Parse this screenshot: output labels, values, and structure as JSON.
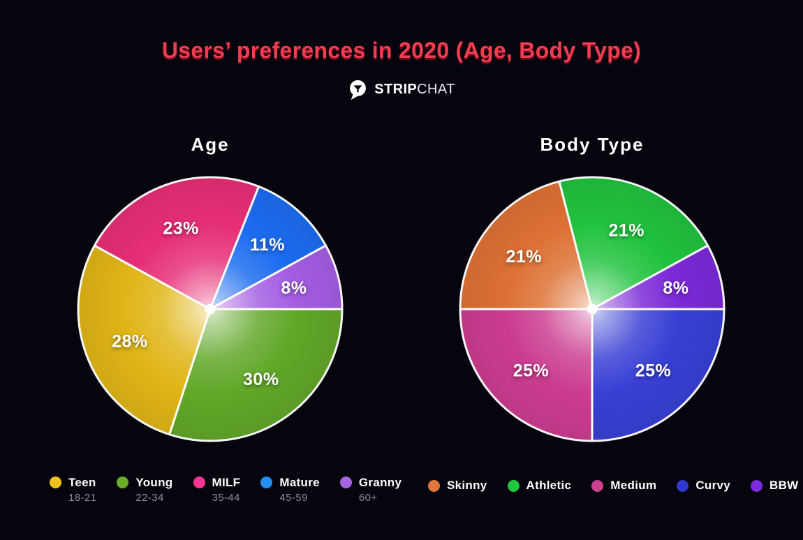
{
  "page": {
    "background": "#06040c"
  },
  "header": {
    "title": "Users’ preferences in 2020 (Age, Body Type)",
    "title_color": "#f23c50",
    "logo": {
      "icon": "stripchat-speech-bubble-martini-icon",
      "brand_bold": "STRIP",
      "brand_light": "CHAT"
    }
  },
  "chart_data": [
    {
      "type": "pie",
      "title": "Age",
      "unit": "%",
      "start_angle_clockwise_from_east_deg": 0,
      "slices": [
        {
          "label": "Young",
          "sublabel": "22-34",
          "value": 30,
          "color": "#61a728"
        },
        {
          "label": "Teen",
          "sublabel": "18-21",
          "value": 28,
          "color": "#e0b517"
        },
        {
          "label": "MILF",
          "sublabel": "35-44",
          "value": 23,
          "color": "#e62e75"
        },
        {
          "label": "Mature",
          "sublabel": "45-59",
          "value": 11,
          "color": "#1c6cf0"
        },
        {
          "label": "Granny",
          "sublabel": "60+",
          "value": 8,
          "color": "#a35de2"
        }
      ],
      "legend": [
        {
          "label": "Teen",
          "sublabel": "18-21",
          "color": "#efc319"
        },
        {
          "label": "Young",
          "sublabel": "22-34",
          "color": "#6cad27"
        },
        {
          "label": "MILF",
          "sublabel": "35-44",
          "color": "#f63592"
        },
        {
          "label": "Mature",
          "sublabel": "45-59",
          "color": "#2090f5"
        },
        {
          "label": "Granny",
          "sublabel": "60+",
          "color": "#a765e3"
        }
      ],
      "label_format": "percent",
      "slice_border_color": "#ffffff",
      "center_dot_color": "#ffffff"
    },
    {
      "type": "pie",
      "title": "Body Type",
      "unit": "%",
      "start_angle_clockwise_from_east_deg": 0,
      "slices": [
        {
          "label": "Curvy",
          "value": 25,
          "color": "#383fd4"
        },
        {
          "label": "Medium",
          "value": 25,
          "color": "#cb3c8f"
        },
        {
          "label": "Skinny",
          "value": 21,
          "color": "#dd7134"
        },
        {
          "label": "Athletic",
          "value": 21,
          "color": "#20c23d"
        },
        {
          "label": "BBW",
          "value": 8,
          "color": "#7b2ad8"
        }
      ],
      "legend": [
        {
          "label": "Skinny",
          "color": "#e0763c"
        },
        {
          "label": "Athletic",
          "color": "#22c741"
        },
        {
          "label": "Medium",
          "color": "#cb4190"
        },
        {
          "label": "Curvy",
          "color": "#3038cf"
        },
        {
          "label": "BBW",
          "color": "#7c2ae0"
        }
      ],
      "label_format": "percent",
      "slice_border_color": "#ffffff",
      "center_dot_color": "#ffffff"
    }
  ]
}
